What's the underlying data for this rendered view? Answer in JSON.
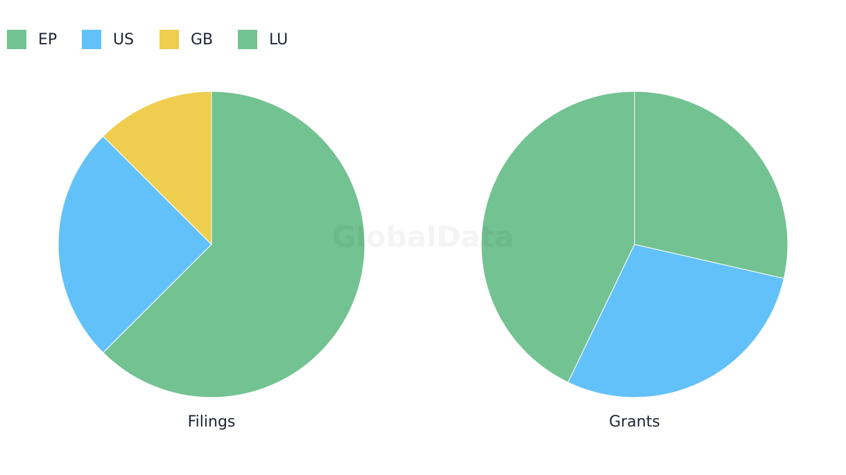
{
  "watermark": "GlobalData",
  "chart_data": [
    {
      "type": "pie",
      "title": "Filings",
      "categories": [
        "EP",
        "US",
        "GB",
        "LU"
      ],
      "values": [
        5,
        2,
        1,
        0
      ],
      "colors": [
        "#73c291",
        "#63c1fa",
        "#efcd4f",
        "#73c291"
      ]
    },
    {
      "type": "pie",
      "title": "Grants",
      "categories": [
        "EP",
        "US",
        "GB",
        "LU"
      ],
      "values": [
        2,
        2,
        0,
        3
      ],
      "colors": [
        "#73c291",
        "#63c1fa",
        "#efcd4f",
        "#73c291"
      ]
    }
  ]
}
